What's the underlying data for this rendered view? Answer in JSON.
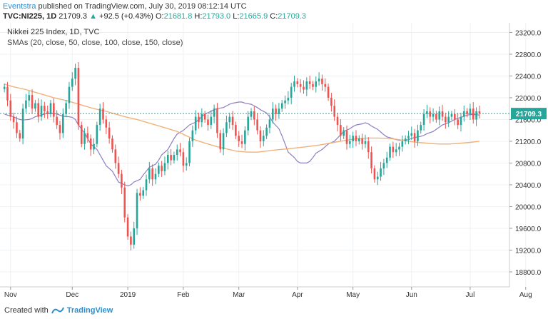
{
  "header": {
    "author": "Eventstra",
    "published_text": "published on TradingView.com, July 30, 2019 08:12:14 UTC"
  },
  "ticker": {
    "symbol": "TVC:NI225, 1D",
    "last": "21709.3",
    "change": "+92.5 (+0.43%)",
    "o_label": "O:",
    "o": "21681.8",
    "h_label": "H:",
    "h": "21793.0",
    "l_label": "L:",
    "l": "21665.9",
    "c_label": "C:",
    "c": "21709.3"
  },
  "legend": {
    "title": "Nikkei 225 Index, 1D, TVC",
    "smas": "SMAs (20, close, 50, close, 100, close, 150, close)"
  },
  "footer": {
    "created_with": "Created with",
    "brand": "TradingView"
  },
  "colors": {
    "up": "#26a69a",
    "down": "#ef5350",
    "price_line": "#26a69a",
    "sma20": "#8e7cc3",
    "sma50": "#4a6fa5",
    "sma100": "#f0954a",
    "sma150": "#f0b27a",
    "extra_pink": "#d47a8c",
    "extra_green": "#8bc34a",
    "accent": "#2a8fcf"
  },
  "chart_data": {
    "type": "candlestick",
    "title": "Nikkei 225 Index, 1D, TVC",
    "ylim": [
      18550,
      23350
    ],
    "y_ticks": [
      18800,
      19200,
      19600,
      20000,
      20400,
      20800,
      21200,
      21600,
      22000,
      22400,
      22800,
      23200
    ],
    "y_tick_labels": [
      "18800.0",
      "19200.0",
      "19600.0",
      "20000.0",
      "20400.0",
      "20800.0",
      "21200.0",
      "21600.0",
      "22000.0",
      "22400.0",
      "22800.0",
      "23200.0"
    ],
    "x_ticks": [
      {
        "label": "Nov",
        "index": 2
      },
      {
        "label": "Dec",
        "index": 22
      },
      {
        "label": "2019",
        "index": 40
      },
      {
        "label": "Feb",
        "index": 58
      },
      {
        "label": "Mar",
        "index": 76
      },
      {
        "label": "Apr",
        "index": 95
      },
      {
        "label": "May",
        "index": 113
      },
      {
        "label": "Jun",
        "index": 132
      },
      {
        "label": "Jul",
        "index": 151
      },
      {
        "label": "Aug",
        "index": 169
      }
    ],
    "last_price": 21709.3,
    "last_price_label": "21709.3",
    "close": [
      22200,
      21950,
      21650,
      21550,
      21350,
      21250,
      21800,
      21950,
      22050,
      21800,
      21900,
      21650,
      21850,
      21750,
      21700,
      21900,
      21650,
      21500,
      21350,
      21700,
      21900,
      22200,
      22350,
      22550,
      21500,
      21150,
      21350,
      21250,
      21050,
      21150,
      21500,
      21800,
      21600,
      21450,
      21250,
      21050,
      20800,
      20600,
      20350,
      19800,
      19450,
      19300,
      19600,
      20250,
      20200,
      20300,
      20500,
      20700,
      20500,
      20600,
      20750,
      20650,
      20800,
      20950,
      20850,
      20950,
      21050,
      21000,
      20750,
      20800,
      21200,
      21400,
      21650,
      21550,
      21700,
      21600,
      21500,
      21650,
      21800,
      21350,
      21050,
      21350,
      21550,
      21650,
      21500,
      21300,
      21200,
      21150,
      21400,
      21650,
      21750,
      21600,
      21400,
      21200,
      21300,
      21450,
      21600,
      21800,
      21700,
      21800,
      21900,
      21950,
      22000,
      22200,
      22300,
      22250,
      22200,
      22150,
      22300,
      22250,
      22200,
      22300,
      22350,
      22250,
      22200,
      22000,
      21850,
      21650,
      21500,
      21300,
      21400,
      21150,
      21200,
      21300,
      21200,
      21250,
      21150,
      21200,
      21000,
      20700,
      20500,
      20550,
      20700,
      20800,
      20900,
      21100,
      21000,
      21050,
      21100,
      21200,
      21250,
      21300,
      21350,
      21200,
      21400,
      21500,
      21700,
      21750,
      21650,
      21700,
      21600,
      21750,
      21650,
      21550,
      21650,
      21700,
      21600,
      21500,
      21650,
      21750,
      21700,
      21800,
      21600,
      21750,
      21709
    ],
    "series": [
      {
        "name": "SMA 20",
        "values": [
          21700,
          21680,
          21650,
          21620,
          21600,
          21590,
          21600,
          21620,
          21650,
          21680,
          21700,
          21710,
          21720,
          21700,
          21680,
          21660,
          21650,
          21640,
          21600,
          21500,
          21350,
          21250,
          21150,
          21050,
          20950,
          20850,
          20750,
          20650,
          20550,
          20450,
          20400,
          20380,
          20400,
          20450,
          20500,
          20580,
          20650,
          20720,
          20780,
          20850,
          20950,
          21050,
          21150,
          21250,
          21330,
          21400,
          21450,
          21500,
          21550,
          21600,
          21650,
          21700,
          21750,
          21780,
          21800,
          21820,
          21850,
          21880,
          21900,
          21920,
          21920,
          21900,
          21880,
          21850,
          21820,
          21780,
          21720,
          21650,
          21550,
          21430,
          21300,
          21150,
          21000,
          20900,
          20830,
          20800,
          20800,
          20830,
          20900,
          20980,
          21050,
          21100,
          21150,
          21200,
          21260,
          21320,
          21380,
          21430,
          21470,
          21500,
          21520,
          21540,
          21520,
          21480,
          21420,
          21370,
          21320,
          21280,
          21250,
          21230,
          21220,
          21220,
          21230,
          21250,
          21270,
          21290,
          21310,
          21340,
          21380,
          21420,
          21460,
          21500,
          21540,
          21570,
          21600,
          21640,
          21660,
          21680,
          21690,
          21690,
          21680
        ]
      },
      {
        "name": "SMA 150",
        "values": [
          22250,
          22200,
          22150,
          22100,
          22050,
          22000,
          21950,
          21900,
          21850,
          21800,
          21750,
          21700,
          21650,
          21600,
          21550,
          21500,
          21450,
          21380,
          21300,
          21220,
          21150,
          21100,
          21060,
          21020,
          21000,
          21000,
          21020,
          21040,
          21060,
          21080,
          21100,
          21130,
          21160,
          21190,
          21220,
          21250,
          21260,
          21260,
          21250,
          21230,
          21200,
          21180,
          21160,
          21150,
          21150,
          21160,
          21180,
          21200
        ]
      }
    ]
  }
}
